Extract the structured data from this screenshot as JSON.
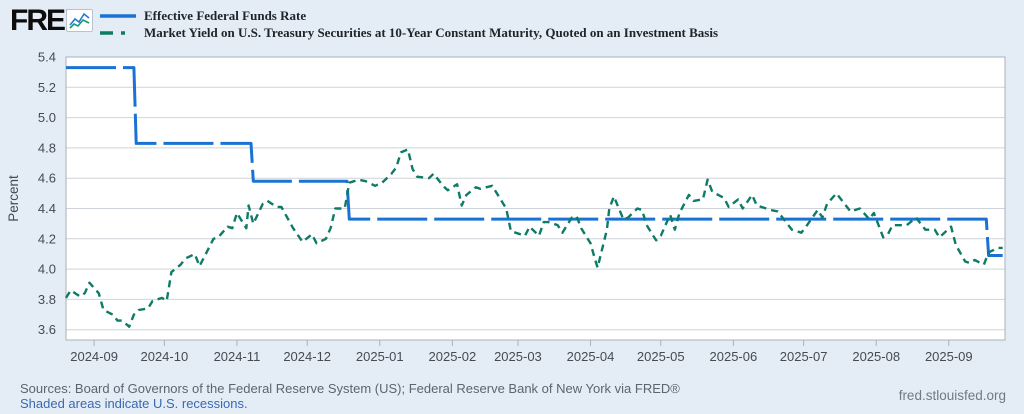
{
  "header": {
    "logo": "FRED",
    "logo_registered": "®",
    "legend": [
      {
        "label": "Effective Federal Funds Rate",
        "color": "#1a73d4",
        "style": "solid"
      },
      {
        "label": "Market Yield on U.S. Treasury Securities at 10-Year Constant Maturity, Quoted on an Investment Basis",
        "color": "#0e7b66",
        "style": "dashed"
      }
    ]
  },
  "footer": {
    "sources": "Sources: Board of Governors of the Federal Reserve System (US); Federal Reserve Bank of New York via FRED®",
    "recession_note": "Shaded areas indicate U.S. recessions.",
    "site": "fred.stlouisfed.org"
  },
  "chart_data": {
    "type": "line",
    "title": "",
    "xlabel": "",
    "ylabel": "Percent",
    "ylim": [
      3.6,
      5.4
    ],
    "yticks": [
      5.4,
      5.2,
      5.0,
      4.8,
      4.6,
      4.4,
      4.2,
      4.0,
      3.8,
      3.6
    ],
    "xticks": [
      "2024-09",
      "2024-10",
      "2024-11",
      "2024-12",
      "2025-01",
      "2025-02",
      "2025-03",
      "2025-04",
      "2025-05",
      "2025-06",
      "2025-07",
      "2025-08",
      "2025-09"
    ],
    "x_range": [
      "2024-08-20",
      "2025-09-25"
    ],
    "grid": true,
    "legend_position": "top-left",
    "page_bg": "#e4edf6",
    "plot_bg": "#ffffff",
    "grid_color": "#ced4d9",
    "border_color": "#a9b2ba",
    "series": [
      {
        "name": "Effective Federal Funds Rate",
        "color": "#1a73d4",
        "width": 3,
        "dash": "50 7",
        "points": [
          [
            "2024-08-20",
            5.33
          ],
          [
            "2024-09-18",
            5.33
          ],
          [
            "2024-09-19",
            4.83
          ],
          [
            "2024-11-07",
            4.83
          ],
          [
            "2024-11-08",
            4.58
          ],
          [
            "2024-12-18",
            4.58
          ],
          [
            "2024-12-19",
            4.33
          ],
          [
            "2025-09-17",
            4.33
          ],
          [
            "2025-09-18",
            4.09
          ],
          [
            "2025-09-24",
            4.09
          ]
        ]
      },
      {
        "name": "Market Yield on U.S. Treasury Securities at 10-Year Constant Maturity, Quoted on an Investment Basis",
        "color": "#0e7b66",
        "width": 2.4,
        "dash": "7 5",
        "points": [
          [
            "2024-08-20",
            3.81
          ],
          [
            "2024-08-22",
            3.86
          ],
          [
            "2024-08-26",
            3.82
          ],
          [
            "2024-08-28",
            3.84
          ],
          [
            "2024-08-30",
            3.91
          ],
          [
            "2024-09-03",
            3.84
          ],
          [
            "2024-09-05",
            3.73
          ],
          [
            "2024-09-09",
            3.7
          ],
          [
            "2024-09-11",
            3.66
          ],
          [
            "2024-09-13",
            3.66
          ],
          [
            "2024-09-16",
            3.62
          ],
          [
            "2024-09-18",
            3.7
          ],
          [
            "2024-09-20",
            3.73
          ],
          [
            "2024-09-24",
            3.74
          ],
          [
            "2024-09-26",
            3.79
          ],
          [
            "2024-09-30",
            3.81
          ],
          [
            "2024-10-02",
            3.79
          ],
          [
            "2024-10-04",
            3.98
          ],
          [
            "2024-10-08",
            4.03
          ],
          [
            "2024-10-10",
            4.07
          ],
          [
            "2024-10-14",
            4.1
          ],
          [
            "2024-10-16",
            4.02
          ],
          [
            "2024-10-18",
            4.08
          ],
          [
            "2024-10-22",
            4.2
          ],
          [
            "2024-10-24",
            4.21
          ],
          [
            "2024-10-28",
            4.28
          ],
          [
            "2024-10-30",
            4.27
          ],
          [
            "2024-11-01",
            4.37
          ],
          [
            "2024-11-05",
            4.27
          ],
          [
            "2024-11-06",
            4.42
          ],
          [
            "2024-11-08",
            4.3
          ],
          [
            "2024-11-12",
            4.43
          ],
          [
            "2024-11-14",
            4.45
          ],
          [
            "2024-11-18",
            4.41
          ],
          [
            "2024-11-20",
            4.41
          ],
          [
            "2024-11-25",
            4.27
          ],
          [
            "2024-11-29",
            4.18
          ],
          [
            "2024-12-03",
            4.23
          ],
          [
            "2024-12-05",
            4.17
          ],
          [
            "2024-12-09",
            4.2
          ],
          [
            "2024-12-11",
            4.27
          ],
          [
            "2024-12-13",
            4.4
          ],
          [
            "2024-12-17",
            4.4
          ],
          [
            "2024-12-19",
            4.57
          ],
          [
            "2024-12-23",
            4.59
          ],
          [
            "2024-12-26",
            4.58
          ],
          [
            "2024-12-30",
            4.55
          ],
          [
            "2025-01-02",
            4.57
          ],
          [
            "2025-01-06",
            4.63
          ],
          [
            "2025-01-08",
            4.67
          ],
          [
            "2025-01-10",
            4.77
          ],
          [
            "2025-01-13",
            4.79
          ],
          [
            "2025-01-15",
            4.66
          ],
          [
            "2025-01-17",
            4.61
          ],
          [
            "2025-01-22",
            4.6
          ],
          [
            "2025-01-24",
            4.63
          ],
          [
            "2025-01-28",
            4.55
          ],
          [
            "2025-01-30",
            4.52
          ],
          [
            "2025-02-03",
            4.56
          ],
          [
            "2025-02-05",
            4.42
          ],
          [
            "2025-02-07",
            4.49
          ],
          [
            "2025-02-11",
            4.54
          ],
          [
            "2025-02-13",
            4.53
          ],
          [
            "2025-02-18",
            4.55
          ],
          [
            "2025-02-20",
            4.5
          ],
          [
            "2025-02-24",
            4.4
          ],
          [
            "2025-02-26",
            4.25
          ],
          [
            "2025-02-28",
            4.24
          ],
          [
            "2025-03-04",
            4.22
          ],
          [
            "2025-03-06",
            4.28
          ],
          [
            "2025-03-10",
            4.22
          ],
          [
            "2025-03-12",
            4.31
          ],
          [
            "2025-03-14",
            4.31
          ],
          [
            "2025-03-18",
            4.29
          ],
          [
            "2025-03-20",
            4.24
          ],
          [
            "2025-03-24",
            4.34
          ],
          [
            "2025-03-26",
            4.35
          ],
          [
            "2025-03-28",
            4.27
          ],
          [
            "2025-04-01",
            4.17
          ],
          [
            "2025-04-03",
            4.06
          ],
          [
            "2025-04-04",
            4.01
          ],
          [
            "2025-04-08",
            4.26
          ],
          [
            "2025-04-09",
            4.4
          ],
          [
            "2025-04-11",
            4.48
          ],
          [
            "2025-04-15",
            4.33
          ],
          [
            "2025-04-17",
            4.34
          ],
          [
            "2025-04-21",
            4.4
          ],
          [
            "2025-04-23",
            4.39
          ],
          [
            "2025-04-25",
            4.29
          ],
          [
            "2025-04-29",
            4.19
          ],
          [
            "2025-05-01",
            4.22
          ],
          [
            "2025-05-05",
            4.36
          ],
          [
            "2025-05-07",
            4.26
          ],
          [
            "2025-05-09",
            4.37
          ],
          [
            "2025-05-13",
            4.49
          ],
          [
            "2025-05-15",
            4.45
          ],
          [
            "2025-05-19",
            4.46
          ],
          [
            "2025-05-21",
            4.59
          ],
          [
            "2025-05-23",
            4.51
          ],
          [
            "2025-05-28",
            4.47
          ],
          [
            "2025-05-30",
            4.41
          ],
          [
            "2025-06-03",
            4.46
          ],
          [
            "2025-06-05",
            4.4
          ],
          [
            "2025-06-09",
            4.49
          ],
          [
            "2025-06-11",
            4.42
          ],
          [
            "2025-06-13",
            4.41
          ],
          [
            "2025-06-17",
            4.39
          ],
          [
            "2025-06-20",
            4.38
          ],
          [
            "2025-06-24",
            4.3
          ],
          [
            "2025-06-26",
            4.26
          ],
          [
            "2025-06-30",
            4.24
          ],
          [
            "2025-07-02",
            4.28
          ],
          [
            "2025-07-07",
            4.39
          ],
          [
            "2025-07-09",
            4.34
          ],
          [
            "2025-07-11",
            4.43
          ],
          [
            "2025-07-15",
            4.5
          ],
          [
            "2025-07-17",
            4.46
          ],
          [
            "2025-07-21",
            4.38
          ],
          [
            "2025-07-23",
            4.39
          ],
          [
            "2025-07-25",
            4.4
          ],
          [
            "2025-07-29",
            4.33
          ],
          [
            "2025-07-31",
            4.37
          ],
          [
            "2025-08-04",
            4.21
          ],
          [
            "2025-08-06",
            4.23
          ],
          [
            "2025-08-08",
            4.29
          ],
          [
            "2025-08-12",
            4.29
          ],
          [
            "2025-08-14",
            4.29
          ],
          [
            "2025-08-18",
            4.34
          ],
          [
            "2025-08-20",
            4.3
          ],
          [
            "2025-08-22",
            4.26
          ],
          [
            "2025-08-26",
            4.26
          ],
          [
            "2025-08-28",
            4.21
          ],
          [
            "2025-09-02",
            4.28
          ],
          [
            "2025-09-04",
            4.16
          ],
          [
            "2025-09-08",
            4.05
          ],
          [
            "2025-09-10",
            4.04
          ],
          [
            "2025-09-12",
            4.06
          ],
          [
            "2025-09-16",
            4.03
          ],
          [
            "2025-09-18",
            4.11
          ],
          [
            "2025-09-22",
            4.14
          ],
          [
            "2025-09-24",
            4.14
          ]
        ]
      }
    ]
  }
}
